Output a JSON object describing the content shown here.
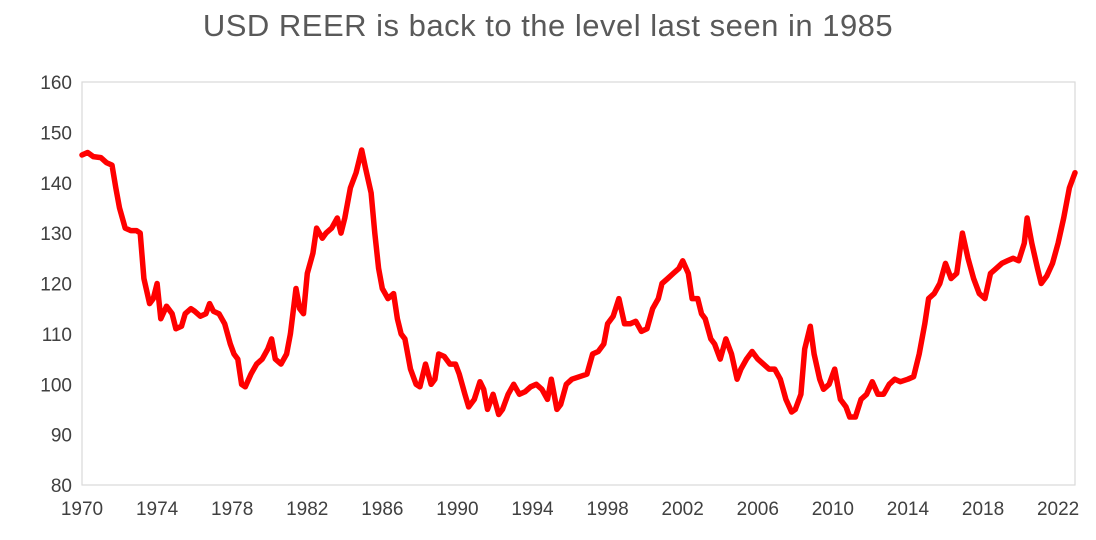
{
  "chart_data": {
    "type": "line",
    "title": "USD REER is back to the level last seen in 1985",
    "xlabel": "",
    "ylabel": "",
    "xlim": [
      1970,
      2022.9
    ],
    "ylim": [
      80,
      160
    ],
    "x_ticks": [
      1970,
      1974,
      1978,
      1982,
      1986,
      1990,
      1994,
      1998,
      2002,
      2006,
      2010,
      2014,
      2018,
      2022
    ],
    "y_ticks": [
      80,
      90,
      100,
      110,
      120,
      130,
      140,
      150,
      160
    ],
    "grid": false,
    "legend": "none",
    "series": [
      {
        "color": "#ff0000",
        "points": [
          [
            1970.0,
            145.5
          ],
          [
            1970.3,
            146
          ],
          [
            1970.6,
            145.2
          ],
          [
            1971.0,
            145
          ],
          [
            1971.3,
            144
          ],
          [
            1971.6,
            143.5
          ],
          [
            1971.8,
            139
          ],
          [
            1972.0,
            135
          ],
          [
            1972.3,
            131
          ],
          [
            1972.6,
            130.5
          ],
          [
            1972.9,
            130.5
          ],
          [
            1973.1,
            130
          ],
          [
            1973.3,
            121
          ],
          [
            1973.6,
            116
          ],
          [
            1973.8,
            117
          ],
          [
            1974.0,
            120
          ],
          [
            1974.2,
            113
          ],
          [
            1974.5,
            115.5
          ],
          [
            1974.8,
            114
          ],
          [
            1975.0,
            111
          ],
          [
            1975.3,
            111.5
          ],
          [
            1975.5,
            114
          ],
          [
            1975.8,
            115
          ],
          [
            1976.0,
            114.5
          ],
          [
            1976.3,
            113.5
          ],
          [
            1976.6,
            114
          ],
          [
            1976.8,
            116
          ],
          [
            1977.0,
            114.5
          ],
          [
            1977.3,
            114
          ],
          [
            1977.6,
            112
          ],
          [
            1977.9,
            108
          ],
          [
            1978.1,
            106
          ],
          [
            1978.3,
            105
          ],
          [
            1978.5,
            100
          ],
          [
            1978.7,
            99.5
          ],
          [
            1979.0,
            102
          ],
          [
            1979.3,
            104
          ],
          [
            1979.6,
            105
          ],
          [
            1979.9,
            107
          ],
          [
            1980.1,
            109
          ],
          [
            1980.3,
            105
          ],
          [
            1980.6,
            104
          ],
          [
            1980.9,
            106
          ],
          [
            1981.1,
            110
          ],
          [
            1981.4,
            119
          ],
          [
            1981.6,
            115
          ],
          [
            1981.8,
            114
          ],
          [
            1982.0,
            122
          ],
          [
            1982.3,
            126
          ],
          [
            1982.5,
            131
          ],
          [
            1982.8,
            129
          ],
          [
            1983.0,
            130
          ],
          [
            1983.3,
            131
          ],
          [
            1983.6,
            133
          ],
          [
            1983.8,
            130
          ],
          [
            1984.0,
            133
          ],
          [
            1984.3,
            139
          ],
          [
            1984.6,
            142
          ],
          [
            1984.9,
            146.5
          ],
          [
            1985.1,
            143
          ],
          [
            1985.4,
            138
          ],
          [
            1985.6,
            130
          ],
          [
            1985.8,
            123
          ],
          [
            1986.0,
            119
          ],
          [
            1986.3,
            117
          ],
          [
            1986.6,
            118
          ],
          [
            1986.8,
            113
          ],
          [
            1987.0,
            110
          ],
          [
            1987.2,
            109
          ],
          [
            1987.5,
            103
          ],
          [
            1987.8,
            100
          ],
          [
            1988.0,
            99.5
          ],
          [
            1988.3,
            104
          ],
          [
            1988.6,
            100
          ],
          [
            1988.8,
            101
          ],
          [
            1989.0,
            106
          ],
          [
            1989.3,
            105.5
          ],
          [
            1989.6,
            104
          ],
          [
            1989.9,
            104
          ],
          [
            1990.1,
            102
          ],
          [
            1990.4,
            98
          ],
          [
            1990.6,
            95.5
          ],
          [
            1990.9,
            97
          ],
          [
            1991.2,
            100.5
          ],
          [
            1991.4,
            99
          ],
          [
            1991.6,
            95
          ],
          [
            1991.9,
            98
          ],
          [
            1992.2,
            94
          ],
          [
            1992.4,
            95
          ],
          [
            1992.7,
            98
          ],
          [
            1993.0,
            100
          ],
          [
            1993.3,
            98
          ],
          [
            1993.6,
            98.5
          ],
          [
            1993.9,
            99.5
          ],
          [
            1994.2,
            100
          ],
          [
            1994.5,
            99
          ],
          [
            1994.8,
            97
          ],
          [
            1995.0,
            101
          ],
          [
            1995.3,
            95
          ],
          [
            1995.5,
            96
          ],
          [
            1995.8,
            100
          ],
          [
            1996.1,
            101
          ],
          [
            1996.5,
            101.5
          ],
          [
            1996.9,
            102
          ],
          [
            1997.2,
            106
          ],
          [
            1997.5,
            106.5
          ],
          [
            1997.8,
            108
          ],
          [
            1998.0,
            112
          ],
          [
            1998.3,
            113.5
          ],
          [
            1998.6,
            117
          ],
          [
            1998.9,
            112
          ],
          [
            1999.2,
            112
          ],
          [
            1999.5,
            112.5
          ],
          [
            1999.8,
            110.5
          ],
          [
            2000.1,
            111
          ],
          [
            2000.4,
            115
          ],
          [
            2000.7,
            117
          ],
          [
            2000.9,
            120
          ],
          [
            2001.2,
            121
          ],
          [
            2001.5,
            122
          ],
          [
            2001.8,
            123
          ],
          [
            2002.0,
            124.5
          ],
          [
            2002.3,
            122
          ],
          [
            2002.5,
            117
          ],
          [
            2002.8,
            117
          ],
          [
            2003.0,
            114
          ],
          [
            2003.2,
            113
          ],
          [
            2003.5,
            109
          ],
          [
            2003.7,
            108
          ],
          [
            2004.0,
            105
          ],
          [
            2004.3,
            109
          ],
          [
            2004.6,
            106
          ],
          [
            2004.9,
            101
          ],
          [
            2005.1,
            103
          ],
          [
            2005.4,
            105
          ],
          [
            2005.7,
            106.5
          ],
          [
            2006.0,
            105
          ],
          [
            2006.3,
            104
          ],
          [
            2006.6,
            103
          ],
          [
            2006.9,
            103
          ],
          [
            2007.2,
            101
          ],
          [
            2007.5,
            97
          ],
          [
            2007.8,
            94.5
          ],
          [
            2008.0,
            95
          ],
          [
            2008.3,
            98
          ],
          [
            2008.5,
            107
          ],
          [
            2008.8,
            111.5
          ],
          [
            2009.0,
            106
          ],
          [
            2009.3,
            101
          ],
          [
            2009.5,
            99
          ],
          [
            2009.8,
            100
          ],
          [
            2010.1,
            103
          ],
          [
            2010.4,
            97
          ],
          [
            2010.7,
            95.5
          ],
          [
            2010.9,
            93.5
          ],
          [
            2011.2,
            93.5
          ],
          [
            2011.5,
            97
          ],
          [
            2011.8,
            98
          ],
          [
            2012.1,
            100.5
          ],
          [
            2012.4,
            98
          ],
          [
            2012.7,
            98
          ],
          [
            2013.0,
            100
          ],
          [
            2013.3,
            101
          ],
          [
            2013.6,
            100.5
          ],
          [
            2014.0,
            101
          ],
          [
            2014.3,
            101.5
          ],
          [
            2014.6,
            106
          ],
          [
            2014.9,
            112
          ],
          [
            2015.1,
            117
          ],
          [
            2015.4,
            118
          ],
          [
            2015.7,
            120
          ],
          [
            2016.0,
            124
          ],
          [
            2016.3,
            121
          ],
          [
            2016.6,
            122
          ],
          [
            2016.9,
            130
          ],
          [
            2017.2,
            125
          ],
          [
            2017.5,
            121
          ],
          [
            2017.8,
            118
          ],
          [
            2018.1,
            117
          ],
          [
            2018.4,
            122
          ],
          [
            2018.7,
            123
          ],
          [
            2019.0,
            124
          ],
          [
            2019.3,
            124.5
          ],
          [
            2019.6,
            125
          ],
          [
            2019.9,
            124.5
          ],
          [
            2020.2,
            128
          ],
          [
            2020.35,
            133
          ],
          [
            2020.6,
            128
          ],
          [
            2020.9,
            123
          ],
          [
            2021.1,
            120
          ],
          [
            2021.4,
            121.5
          ],
          [
            2021.7,
            124
          ],
          [
            2022.0,
            128
          ],
          [
            2022.3,
            133
          ],
          [
            2022.6,
            139
          ],
          [
            2022.9,
            142
          ]
        ]
      }
    ]
  }
}
